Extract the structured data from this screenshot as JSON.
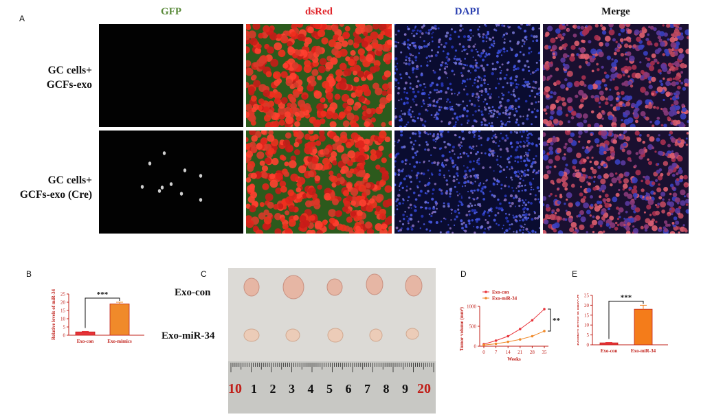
{
  "panel_a": {
    "letter": "A",
    "columns": [
      {
        "label": "GFP",
        "color": "#5a8a3a"
      },
      {
        "label": "dsRed",
        "color": "#e0242a"
      },
      {
        "label": "DAPI",
        "color": "#2a3fb0"
      },
      {
        "label": "Merge",
        "color": "#111111"
      }
    ],
    "rows": [
      {
        "line1": "GC cells+",
        "line2": "GCFs-exo"
      },
      {
        "line1": "GC cells+",
        "line2": "GCFs-exo (Cre)"
      }
    ]
  },
  "panel_b": {
    "letter": "B",
    "chart_data": {
      "type": "bar",
      "categories": [
        "Exo-con",
        "Exo-mimics"
      ],
      "values": [
        2,
        19
      ],
      "errors": [
        0.3,
        1.0
      ],
      "ylabel": "Relative levels of miR-34",
      "ylim": [
        0,
        25
      ],
      "yticks": [
        "0",
        "5",
        "10",
        "15",
        "20",
        "25"
      ],
      "significance": "***",
      "colors": [
        "#e8333a",
        "#f08a2a"
      ]
    }
  },
  "panel_c": {
    "letter": "C",
    "row_labels": [
      "Exo-con",
      "Exo-miR-34"
    ],
    "ruler_numbers": [
      "10",
      "1",
      "2",
      "3",
      "4",
      "5",
      "6",
      "7",
      "8",
      "9",
      "20"
    ]
  },
  "panel_d": {
    "letter": "D",
    "chart_data": {
      "type": "line",
      "x": [
        0,
        7,
        14,
        21,
        28,
        35
      ],
      "xticks": [
        "0",
        "7",
        "14",
        "21",
        "28",
        "35"
      ],
      "series": [
        {
          "name": "Exo-con",
          "values": [
            50,
            140,
            250,
            430,
            650,
            930
          ],
          "color": "#e8333a"
        },
        {
          "name": "Exo-miR-34",
          "values": [
            30,
            60,
            110,
            170,
            250,
            380
          ],
          "color": "#f08a2a"
        }
      ],
      "xlabel": "Weeks",
      "ylabel": "Tumor volume (mm³)",
      "ylim": [
        0,
        1000
      ],
      "yticks": [
        "0",
        "500",
        "1000"
      ],
      "significance": "**"
    }
  },
  "panel_e": {
    "letter": "E",
    "chart_data": {
      "type": "bar",
      "categories": [
        "Exo-con",
        "Exo-miR-34"
      ],
      "values": [
        1,
        18
      ],
      "errors": [
        0.2,
        2.0
      ],
      "ylabel": "Relative levels of miR-34",
      "ylim": [
        0,
        25
      ],
      "yticks": [
        "0",
        "5",
        "10",
        "15",
        "20",
        "25"
      ],
      "significance": "***",
      "colors": [
        "#e8333a",
        "#f47c1a"
      ]
    }
  }
}
